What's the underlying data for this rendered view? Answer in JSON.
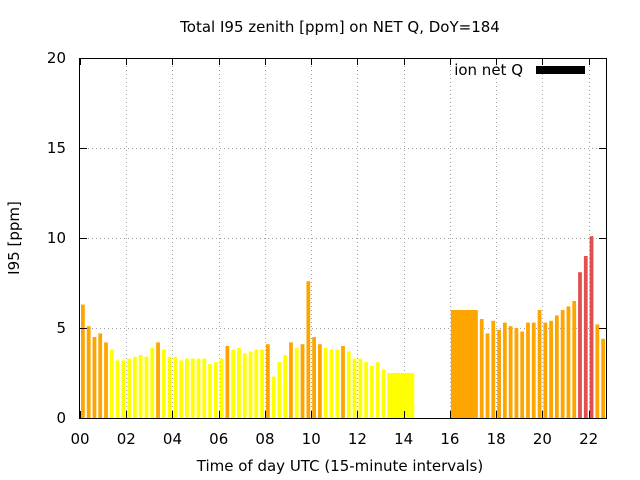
{
  "chart_data": {
    "type": "bar",
    "title": "Total I95 zenith [ppm] on NET Q, DoY=184",
    "xlabel": "Time of day UTC (15-minute intervals)",
    "ylabel": "I95 [ppm]",
    "xlim": [
      0,
      22.75
    ],
    "ylim": [
      0,
      20
    ],
    "xticks": [
      "00",
      "02",
      "04",
      "06",
      "08",
      "10",
      "12",
      "14",
      "16",
      "18",
      "20",
      "22"
    ],
    "yticks": [
      "0",
      "5",
      "10",
      "15",
      "20"
    ],
    "grid": true,
    "legend": {
      "label": "ion net Q",
      "color": "#000000",
      "position": "top-right"
    },
    "colors": {
      "low": "#ffff00",
      "mid": "#ffa500",
      "high": "#e05050"
    },
    "bars": [
      {
        "t": 0.0,
        "w": 0.25,
        "v": 6.3
      },
      {
        "t": 0.25,
        "w": 0.25,
        "v": 5.1
      },
      {
        "t": 0.5,
        "w": 0.25,
        "v": 4.5
      },
      {
        "t": 0.75,
        "w": 0.25,
        "v": 4.7
      },
      {
        "t": 1.0,
        "w": 0.25,
        "v": 4.2
      },
      {
        "t": 1.25,
        "w": 0.25,
        "v": 3.8
      },
      {
        "t": 1.5,
        "w": 0.25,
        "v": 3.2
      },
      {
        "t": 1.75,
        "w": 0.25,
        "v": 3.2
      },
      {
        "t": 2.0,
        "w": 0.25,
        "v": 3.3
      },
      {
        "t": 2.25,
        "w": 0.25,
        "v": 3.4
      },
      {
        "t": 2.5,
        "w": 0.25,
        "v": 3.5
      },
      {
        "t": 2.75,
        "w": 0.25,
        "v": 3.4
      },
      {
        "t": 3.0,
        "w": 0.25,
        "v": 3.9
      },
      {
        "t": 3.25,
        "w": 0.25,
        "v": 4.2
      },
      {
        "t": 3.5,
        "w": 0.25,
        "v": 3.8
      },
      {
        "t": 3.75,
        "w": 0.25,
        "v": 3.4
      },
      {
        "t": 4.0,
        "w": 0.25,
        "v": 3.4
      },
      {
        "t": 4.25,
        "w": 0.25,
        "v": 3.2
      },
      {
        "t": 4.5,
        "w": 0.25,
        "v": 3.3
      },
      {
        "t": 4.75,
        "w": 0.25,
        "v": 3.3
      },
      {
        "t": 5.0,
        "w": 0.25,
        "v": 3.3
      },
      {
        "t": 5.25,
        "w": 0.25,
        "v": 3.3
      },
      {
        "t": 5.5,
        "w": 0.25,
        "v": 3.0
      },
      {
        "t": 5.75,
        "w": 0.25,
        "v": 3.1
      },
      {
        "t": 6.0,
        "w": 0.25,
        "v": 3.3
      },
      {
        "t": 6.25,
        "w": 0.25,
        "v": 4.0
      },
      {
        "t": 6.5,
        "w": 0.25,
        "v": 3.8
      },
      {
        "t": 6.75,
        "w": 0.25,
        "v": 3.9
      },
      {
        "t": 7.0,
        "w": 0.25,
        "v": 3.6
      },
      {
        "t": 7.25,
        "w": 0.25,
        "v": 3.7
      },
      {
        "t": 7.5,
        "w": 0.25,
        "v": 3.8
      },
      {
        "t": 7.75,
        "w": 0.25,
        "v": 3.8
      },
      {
        "t": 8.0,
        "w": 0.25,
        "v": 4.1
      },
      {
        "t": 8.25,
        "w": 0.25,
        "v": 2.3
      },
      {
        "t": 8.5,
        "w": 0.25,
        "v": 3.1
      },
      {
        "t": 8.75,
        "w": 0.25,
        "v": 3.5
      },
      {
        "t": 9.0,
        "w": 0.25,
        "v": 4.2
      },
      {
        "t": 9.25,
        "w": 0.25,
        "v": 3.9
      },
      {
        "t": 9.5,
        "w": 0.25,
        "v": 4.1
      },
      {
        "t": 9.75,
        "w": 0.25,
        "v": 7.6
      },
      {
        "t": 10.0,
        "w": 0.25,
        "v": 4.5
      },
      {
        "t": 10.25,
        "w": 0.25,
        "v": 4.1
      },
      {
        "t": 10.5,
        "w": 0.25,
        "v": 3.9
      },
      {
        "t": 10.75,
        "w": 0.25,
        "v": 3.8
      },
      {
        "t": 11.0,
        "w": 0.25,
        "v": 3.8
      },
      {
        "t": 11.25,
        "w": 0.25,
        "v": 4.0
      },
      {
        "t": 11.5,
        "w": 0.25,
        "v": 3.7
      },
      {
        "t": 11.75,
        "w": 0.25,
        "v": 3.3
      },
      {
        "t": 12.0,
        "w": 0.25,
        "v": 3.3
      },
      {
        "t": 12.25,
        "w": 0.25,
        "v": 3.1
      },
      {
        "t": 12.5,
        "w": 0.25,
        "v": 2.9
      },
      {
        "t": 12.75,
        "w": 0.25,
        "v": 3.1
      },
      {
        "t": 13.0,
        "w": 0.25,
        "v": 2.7
      },
      {
        "t": 13.25,
        "w": 1.25,
        "v": 2.5
      },
      {
        "t": 16.0,
        "w": 1.25,
        "v": 6.0
      },
      {
        "t": 17.25,
        "w": 0.25,
        "v": 5.5
      },
      {
        "t": 17.5,
        "w": 0.25,
        "v": 4.7
      },
      {
        "t": 17.75,
        "w": 0.25,
        "v": 5.4
      },
      {
        "t": 18.0,
        "w": 0.25,
        "v": 4.9
      },
      {
        "t": 18.25,
        "w": 0.25,
        "v": 5.3
      },
      {
        "t": 18.5,
        "w": 0.25,
        "v": 5.1
      },
      {
        "t": 18.75,
        "w": 0.25,
        "v": 5.0
      },
      {
        "t": 19.0,
        "w": 0.25,
        "v": 4.8
      },
      {
        "t": 19.25,
        "w": 0.25,
        "v": 5.3
      },
      {
        "t": 19.5,
        "w": 0.25,
        "v": 5.3
      },
      {
        "t": 19.75,
        "w": 0.25,
        "v": 6.0
      },
      {
        "t": 20.0,
        "w": 0.25,
        "v": 5.3
      },
      {
        "t": 20.25,
        "w": 0.25,
        "v": 5.4
      },
      {
        "t": 20.5,
        "w": 0.25,
        "v": 5.7
      },
      {
        "t": 20.75,
        "w": 0.25,
        "v": 6.0
      },
      {
        "t": 21.0,
        "w": 0.25,
        "v": 6.2
      },
      {
        "t": 21.25,
        "w": 0.25,
        "v": 6.5
      },
      {
        "t": 21.5,
        "w": 0.25,
        "v": 8.1
      },
      {
        "t": 21.75,
        "w": 0.25,
        "v": 9.0
      },
      {
        "t": 22.0,
        "w": 0.25,
        "v": 10.1
      },
      {
        "t": 22.25,
        "w": 0.25,
        "v": 5.2
      },
      {
        "t": 22.5,
        "w": 0.25,
        "v": 4.4
      }
    ]
  }
}
